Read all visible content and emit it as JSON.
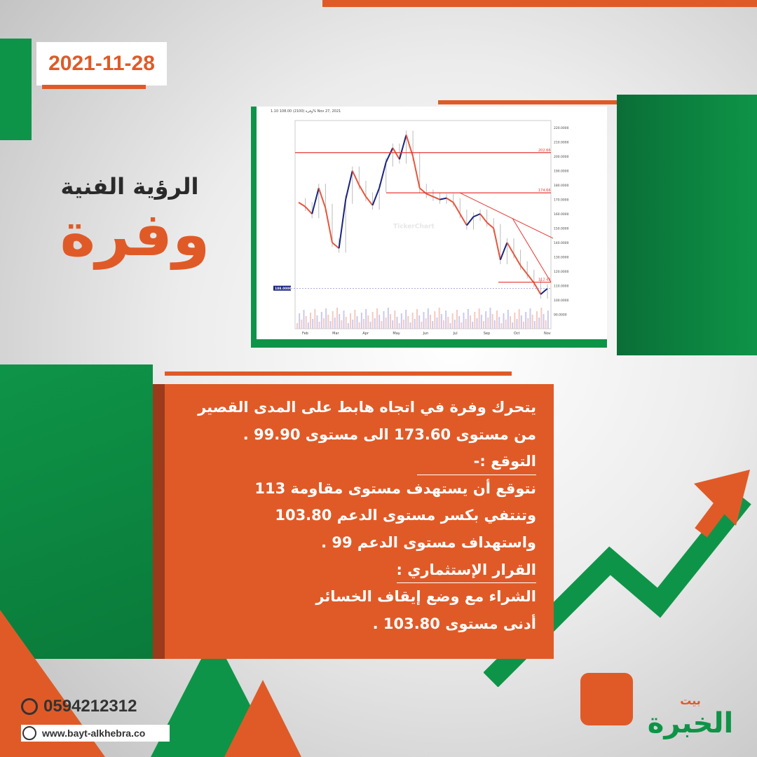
{
  "date": "2021-11-28",
  "title": "الرؤية الفنية",
  "stock_name": "وفرة",
  "analysis_lines": [
    "يتحرك وفرة في اتجاه هابط على المدى القصير",
    "من مستوى 173.60 الى مستوى 99.90 .",
    "التوقع :-",
    "نتوقع أن يستهدف مستوى مقاومة 113",
    "وتنتفي بكسر مستوى الدعم 103.80",
    "واستهداف مستوى الدعم 99 .",
    "القرار الإستثماري :",
    "الشراء مع وضع إيقاف الخسائر",
    "أدنى مستوى 103.80 ."
  ],
  "contact": {
    "phone": "0594212312",
    "website": "www.bayt-alkhebra.co"
  },
  "logo": {
    "text_top": "بيت",
    "text_main": "الخبرة"
  },
  "chart": {
    "header": "وفرة (2100)  108.00  1.10%  Nov 27, 2021",
    "watermark": "TickerChart",
    "months": [
      "Feb",
      "Mar",
      "Apr",
      "May",
      "Jun",
      "Jul",
      "Sep",
      "Oct",
      "Nov"
    ],
    "levels": [
      {
        "value": 202.66,
        "label": "202.66"
      },
      {
        "value": 174.66,
        "label": "174.66"
      },
      {
        "value": 112.43,
        "label": "112.43"
      }
    ],
    "y_ticks": [
      "220.0000",
      "210.0000",
      "200.0000",
      "190.0000",
      "180.0000",
      "170.0000",
      "160.0000",
      "150.0000",
      "140.0000",
      "130.0000",
      "120.0000",
      "110.0000",
      "100.0000",
      "90.0000"
    ],
    "y_range": [
      80,
      225
    ],
    "closes": [
      168,
      165,
      160,
      178,
      164,
      140,
      136,
      170,
      190,
      180,
      172,
      166,
      178,
      196,
      206,
      198,
      215,
      200,
      178,
      174,
      172,
      170,
      171,
      168,
      160,
      152,
      158,
      160,
      154,
      150,
      128,
      140,
      132,
      124,
      118,
      112,
      104,
      108
    ],
    "current_price": "108.0000"
  },
  "colors": {
    "orange": "#e05a27",
    "green": "#0e9448",
    "dark_green": "#0a7a3a",
    "text_dark": "#2a2a2a"
  }
}
